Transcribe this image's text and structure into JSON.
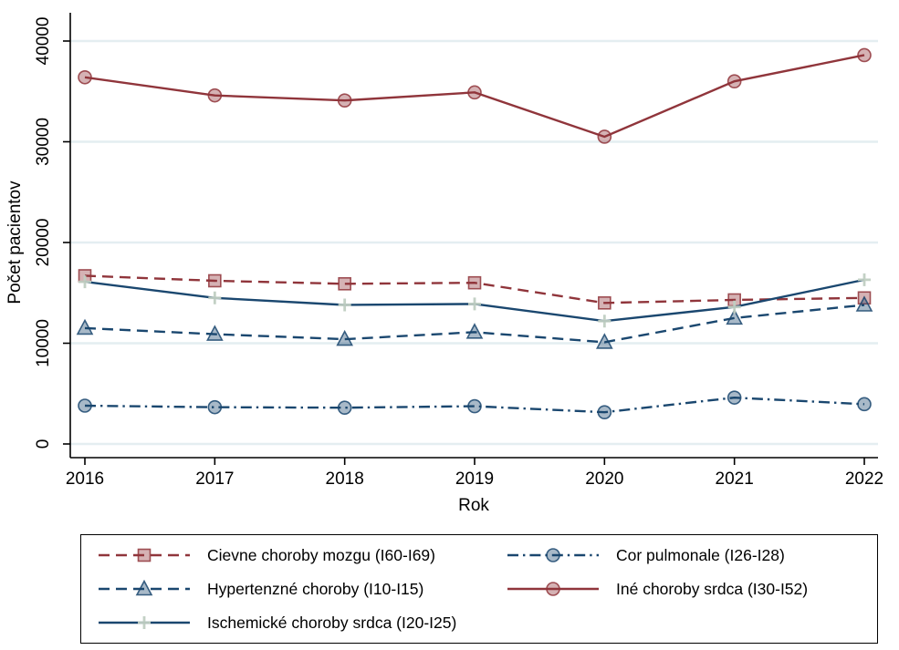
{
  "chart_data": {
    "type": "line",
    "title": "",
    "xlabel": "Rok",
    "ylabel": "Počet pacientov",
    "x": [
      2016,
      2017,
      2018,
      2019,
      2020,
      2021,
      2022
    ],
    "ylim": [
      0,
      40000
    ],
    "yticks": [
      0,
      10000,
      20000,
      30000,
      40000
    ],
    "grid": true,
    "legend_position": "bottom-box",
    "background_color": "#ffffff",
    "gridline_color": "#e4eef1",
    "axis_color": "#000000",
    "series": [
      {
        "name": "Cievne choroby mozgu (I60-I69)",
        "color": "#90353b",
        "line_style": "dashed",
        "marker": "square",
        "values": [
          16700,
          16200,
          15900,
          16000,
          14000,
          14300,
          14500
        ]
      },
      {
        "name": "Hypertenzné choroby (I10-I15)",
        "color": "#1a476f",
        "line_style": "dashed",
        "marker": "triangle",
        "values": [
          11500,
          10900,
          10400,
          11100,
          10100,
          12500,
          13800
        ]
      },
      {
        "name": "Ischemické choroby srdca (I20-I25)",
        "color": "#1a476f",
        "line_style": "solid",
        "marker": "plus",
        "marker_color": "#c0cfc2",
        "values": [
          16100,
          14500,
          13800,
          13900,
          12200,
          13600,
          16300
        ]
      },
      {
        "name": "Cor pulmonale (I26-I28)",
        "color": "#1a476f",
        "line_style": "dashdot",
        "marker": "circle",
        "values": [
          3800,
          3650,
          3600,
          3750,
          3150,
          4600,
          3950
        ]
      },
      {
        "name": "Iné choroby srdca (I30-I52)",
        "color": "#90353b",
        "line_style": "solid",
        "marker": "circle",
        "values": [
          36400,
          34600,
          34100,
          34900,
          30500,
          36000,
          38600
        ]
      }
    ],
    "legend_order": [
      0,
      3,
      1,
      4,
      2
    ]
  }
}
